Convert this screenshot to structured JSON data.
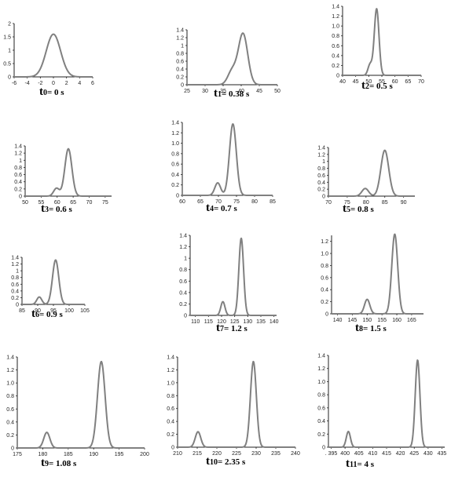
{
  "figure": {
    "line_color": "#808080",
    "axis_color": "#222222"
  },
  "chart_data": [
    {
      "type": "line",
      "caption": {
        "t": "t",
        "sub": "0",
        "eq": "= 0 s"
      },
      "xticks": [
        -6,
        -4,
        -2,
        0,
        2,
        4,
        6
      ],
      "yticks": [
        0,
        0.5,
        1,
        1.5,
        2
      ],
      "xticks_labels": [
        "-6",
        "-4",
        "-2",
        "0",
        "2",
        "4",
        "6"
      ],
      "yticks_labels": [
        "0",
        "0.5",
        "1",
        "1.5",
        "2"
      ],
      "xlim": [
        -6,
        6
      ],
      "ylim": [
        0,
        2
      ],
      "peaks": [
        {
          "center": 0,
          "height": 1.6,
          "width": 1.1
        }
      ]
    },
    {
      "type": "line",
      "caption": {
        "t": "t",
        "sub": "1",
        "eq": "= 0.38 s"
      },
      "xticks": [
        25,
        30,
        35,
        40,
        45,
        50
      ],
      "yticks": [
        0,
        0.2,
        0.4,
        0.6,
        0.8,
        1,
        1.2,
        1.4
      ],
      "xticks_labels": [
        "25",
        "30",
        "35",
        "40",
        "45",
        "50"
      ],
      "yticks_labels": [
        "0",
        "0.2",
        "0.4",
        "0.6",
        "0.8",
        "1",
        "1.2",
        "1.4"
      ],
      "xlim": [
        25,
        50
      ],
      "ylim": [
        0,
        1.4
      ],
      "peaks": [
        {
          "center": 37.5,
          "height": 0.35,
          "width": 1.2
        },
        {
          "center": 40.5,
          "height": 1.3,
          "width": 1.3
        }
      ]
    },
    {
      "type": "line",
      "caption": {
        "t": "t",
        "sub": "2",
        "eq": "= 0.5 s"
      },
      "xticks": [
        40,
        45,
        50,
        55,
        60,
        65,
        70
      ],
      "yticks": [
        0,
        0.2,
        0.4,
        0.6,
        0.8,
        1,
        1.2,
        1.4
      ],
      "xticks_labels": [
        "40",
        "45",
        "50",
        "55",
        "60",
        "65",
        "70"
      ],
      "yticks_labels": [
        "0",
        "0.2",
        "0.4",
        "0.6",
        "0.8",
        "1.0",
        "1.2",
        "1.4"
      ],
      "xlim": [
        40,
        70
      ],
      "ylim": [
        0,
        1.4
      ],
      "peaks": [
        {
          "center": 50.5,
          "height": 0.22,
          "width": 0.8
        },
        {
          "center": 53,
          "height": 1.35,
          "width": 0.9
        }
      ]
    },
    {
      "type": "line",
      "caption": {
        "t": "t",
        "sub": "3",
        "eq": "= 0.6 s"
      },
      "xticks": [
        50,
        55,
        60,
        65,
        70,
        75
      ],
      "yticks": [
        0,
        0.2,
        0.4,
        0.6,
        0.8,
        1,
        1.2,
        1.4
      ],
      "xticks_labels": [
        "50",
        "55",
        "60",
        "65",
        "70",
        "75"
      ],
      "yticks_labels": [
        "0",
        "0.2",
        "0.4",
        "0.6",
        "0.8",
        "1",
        "1.2",
        "1.4"
      ],
      "xlim": [
        50,
        77
      ],
      "ylim": [
        0,
        1.4
      ],
      "peaks": [
        {
          "center": 59.8,
          "height": 0.22,
          "width": 0.9
        },
        {
          "center": 63.5,
          "height": 1.32,
          "width": 1.1
        }
      ]
    },
    {
      "type": "line",
      "caption": {
        "t": "t",
        "sub": "4",
        "eq": "= 0.7 s"
      },
      "xticks": [
        60,
        65,
        70,
        75,
        80,
        85
      ],
      "yticks": [
        0,
        0.2,
        0.4,
        0.6,
        0.8,
        1,
        1.2,
        1.4
      ],
      "xticks_labels": [
        "60",
        "65",
        "70",
        "75",
        "80",
        "85"
      ],
      "yticks_labels": [
        "0",
        "0.2",
        "0.4",
        "0.6",
        "0.8",
        "1.0",
        "1.2",
        "1.4"
      ],
      "xlim": [
        60,
        85
      ],
      "ylim": [
        0,
        1.4
      ],
      "peaks": [
        {
          "center": 69.8,
          "height": 0.24,
          "width": 0.8
        },
        {
          "center": 74,
          "height": 1.37,
          "width": 0.95
        }
      ]
    },
    {
      "type": "line",
      "caption": {
        "t": "t",
        "sub": "5",
        "eq": "= 0.8 s"
      },
      "xticks": [
        70,
        75,
        80,
        85,
        90
      ],
      "yticks": [
        0,
        0.2,
        0.4,
        0.6,
        0.8,
        1,
        1.2,
        1.4
      ],
      "xticks_labels": [
        "70",
        "75",
        "80",
        "85",
        "90"
      ],
      "yticks_labels": [
        "0",
        "0.2",
        "0.4",
        "0.6",
        "0.8",
        "1",
        "1.2",
        "1.4"
      ],
      "xlim": [
        70,
        93
      ],
      "ylim": [
        0,
        1.4
      ],
      "peaks": [
        {
          "center": 79.8,
          "height": 0.22,
          "width": 0.9
        },
        {
          "center": 85,
          "height": 1.32,
          "width": 1.05
        }
      ]
    },
    {
      "type": "line",
      "caption": {
        "t": "t",
        "sub": "6",
        "eq": "= 0.9 s"
      },
      "xticks": [
        85,
        90,
        95,
        100,
        105
      ],
      "yticks": [
        0,
        0.2,
        0.4,
        0.6,
        0.8,
        1,
        1.2,
        1.4
      ],
      "xticks_labels": [
        "85",
        "90",
        "95",
        "100",
        "105"
      ],
      "yticks_labels": [
        "0",
        "0.2",
        "0.4",
        "0.6",
        "0.8",
        "1",
        "1.2",
        "1.4"
      ],
      "xlim": [
        85,
        105
      ],
      "ylim": [
        0,
        1.4
      ],
      "peaks": [
        {
          "center": 90.5,
          "height": 0.22,
          "width": 0.8
        },
        {
          "center": 95.7,
          "height": 1.32,
          "width": 1.0
        }
      ]
    },
    {
      "type": "line",
      "caption": {
        "t": "t",
        "sub": "7",
        "eq": "= 1.2 s"
      },
      "xticks": [
        110,
        115,
        120,
        125,
        130,
        135,
        140
      ],
      "yticks": [
        0,
        0.2,
        0.4,
        0.6,
        0.8,
        1,
        1.2,
        1.4
      ],
      "xticks_labels": [
        "110",
        "115",
        "120",
        "125",
        "130",
        "135",
        "140"
      ],
      "yticks_labels": [
        "0",
        "0.2",
        "0.4",
        "0.6",
        "0.8",
        "1",
        "1.2",
        "1.4"
      ],
      "xlim": [
        108,
        141
      ],
      "ylim": [
        0,
        1.4
      ],
      "peaks": [
        {
          "center": 120.5,
          "height": 0.24,
          "width": 0.8
        },
        {
          "center": 127.5,
          "height": 1.35,
          "width": 0.9
        }
      ]
    },
    {
      "type": "line",
      "caption": {
        "t": "t",
        "sub": "8",
        "eq": "= 1.5 s"
      },
      "xticks": [
        140,
        145,
        150,
        155,
        160,
        165
      ],
      "yticks": [
        0,
        0.2,
        0.4,
        0.6,
        0.8,
        1,
        1.2
      ],
      "xticks_labels": [
        "140",
        "145",
        "150",
        "155",
        "160",
        "165"
      ],
      "yticks_labels": [
        "0",
        "0.2",
        "0.4",
        "0.6",
        "0.8",
        "1.0",
        "1.2"
      ],
      "xlim": [
        138,
        169
      ],
      "ylim": [
        0,
        1.3
      ],
      "peaks": [
        {
          "center": 150,
          "height": 0.24,
          "width": 0.9
        },
        {
          "center": 159.3,
          "height": 1.32,
          "width": 1.0
        }
      ]
    },
    {
      "type": "line",
      "caption": {
        "t": "t",
        "sub": "9",
        "eq": "= 1.08 s"
      },
      "xticks": [
        175,
        180,
        185,
        190,
        195,
        200
      ],
      "yticks": [
        0,
        0.2,
        0.4,
        0.6,
        0.8,
        1,
        1.2,
        1.4
      ],
      "xticks_labels": [
        "175",
        "180",
        "185",
        "190",
        "195",
        "200"
      ],
      "yticks_labels": [
        "0",
        "0.2",
        "0.4",
        "0.6",
        "0.8",
        "1.0",
        "1.2",
        "1.4"
      ],
      "xlim": [
        175,
        200
      ],
      "ylim": [
        0,
        1.4
      ],
      "peaks": [
        {
          "center": 180.8,
          "height": 0.24,
          "width": 0.6
        },
        {
          "center": 191.5,
          "height": 1.33,
          "width": 0.75
        }
      ]
    },
    {
      "type": "line",
      "caption": {
        "t": "t",
        "sub": "10",
        "eq": "= 2.35 s"
      },
      "xticks": [
        210,
        215,
        220,
        225,
        230,
        235,
        240
      ],
      "yticks": [
        0,
        0.2,
        0.4,
        0.6,
        0.8,
        1,
        1.2,
        1.4
      ],
      "xticks_labels": [
        "210",
        "215",
        "220",
        "225",
        "230",
        "235",
        "240"
      ],
      "yticks_labels": [
        "0",
        "0.2",
        "0.4",
        "0.6",
        "0.8",
        "1.0",
        "1.2",
        "1.4"
      ],
      "xlim": [
        210,
        240
      ],
      "ylim": [
        0,
        1.4
      ],
      "peaks": [
        {
          "center": 215.2,
          "height": 0.24,
          "width": 0.7
        },
        {
          "center": 229.3,
          "height": 1.33,
          "width": 0.75
        }
      ]
    },
    {
      "type": "line",
      "caption": {
        "t": "t",
        "sub": "11",
        "eq": "= 4 s"
      },
      "xticks": [
        395,
        400,
        405,
        410,
        415,
        420,
        425,
        430,
        435
      ],
      "yticks": [
        0,
        0.2,
        0.4,
        0.6,
        0.8,
        1,
        1.2,
        1.4
      ],
      "xticks_labels": [
        ". 395",
        "400",
        "405",
        "410",
        "415",
        "420",
        "425",
        "430",
        "435"
      ],
      "yticks_labels": [
        "0",
        "0.2",
        "0.4",
        "0.6",
        "0.8",
        "1.0",
        "1.2",
        "1.4"
      ],
      "xlim": [
        394,
        436
      ],
      "ylim": [
        0,
        1.4
      ],
      "peaks": [
        {
          "center": 401.2,
          "height": 0.24,
          "width": 0.75
        },
        {
          "center": 426.2,
          "height": 1.33,
          "width": 0.85
        }
      ]
    }
  ]
}
